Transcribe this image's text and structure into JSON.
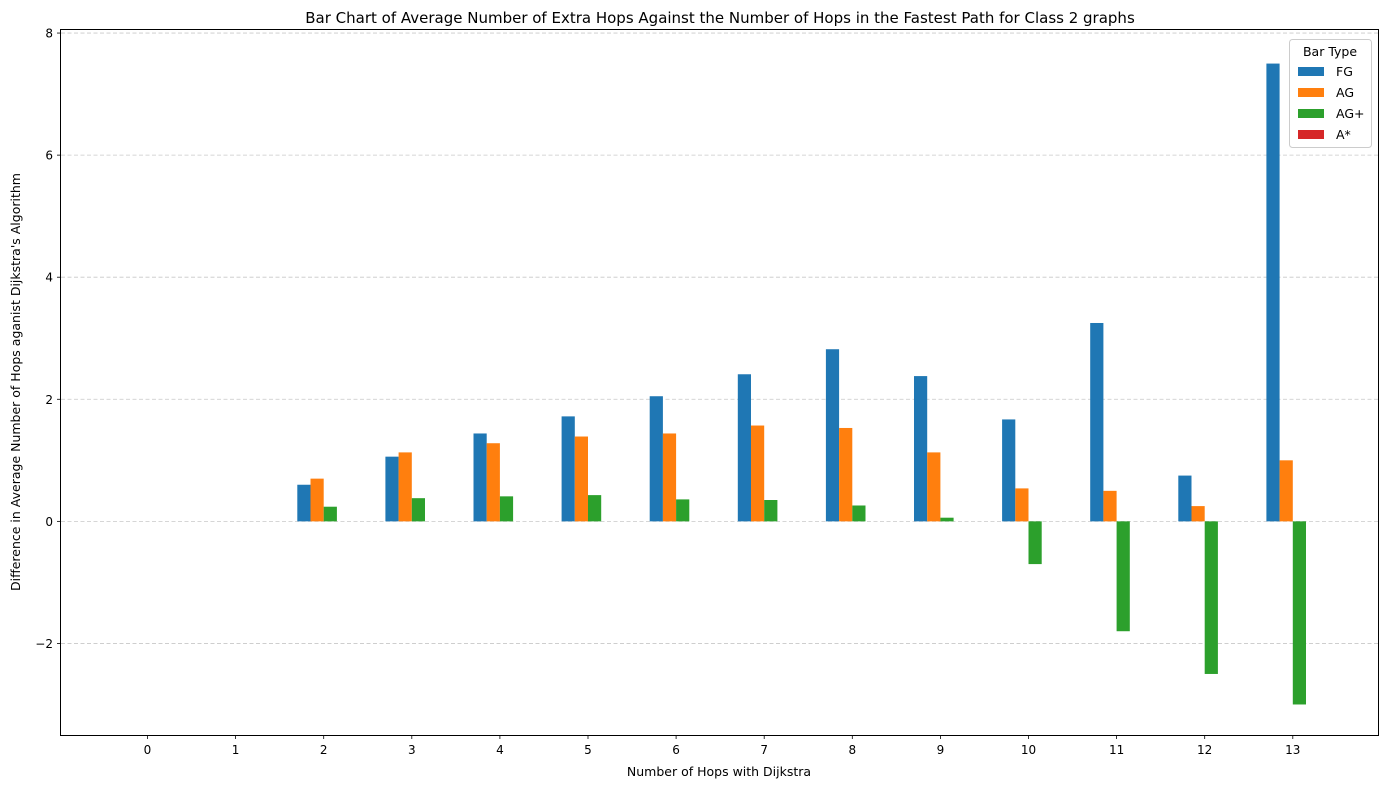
{
  "chart_data": {
    "type": "bar",
    "title": "Bar Chart of Average Number of Extra Hops Against the Number of Hops in the Fastest Path for Class 2 graphs",
    "xlabel": "Number of Hops with Dijkstra",
    "ylabel": "Difference in Average Number of Hops aganist Dijkstra's Algorithm",
    "categories": [
      "0",
      "1",
      "2",
      "3",
      "4",
      "5",
      "6",
      "7",
      "8",
      "9",
      "10",
      "11",
      "12",
      "13"
    ],
    "ylim": [
      -3.5,
      8.05
    ],
    "yticks": [
      -2,
      0,
      2,
      4,
      6,
      8
    ],
    "ytick_labels": [
      "−2",
      "0",
      "2",
      "4",
      "6",
      "8"
    ],
    "grid": "y-dashed",
    "legend_title": "Bar Type",
    "legend_position": "top-right",
    "series": [
      {
        "name": "FG",
        "color": "#1f77b4",
        "values": [
          0,
          0,
          0.6,
          1.06,
          1.44,
          1.72,
          2.05,
          2.41,
          2.82,
          2.38,
          1.67,
          3.25,
          0.75,
          7.5
        ]
      },
      {
        "name": "AG",
        "color": "#ff7f0e",
        "values": [
          0,
          0,
          0.7,
          1.13,
          1.28,
          1.39,
          1.44,
          1.57,
          1.53,
          1.13,
          0.54,
          0.5,
          0.25,
          1.0
        ]
      },
      {
        "name": "AG+",
        "color": "#2ca02c",
        "values": [
          0,
          0,
          0.24,
          0.38,
          0.41,
          0.43,
          0.36,
          0.35,
          0.26,
          0.06,
          -0.7,
          -1.8,
          -2.5,
          -3.0
        ]
      },
      {
        "name": "A*",
        "color": "#d62728",
        "values": [
          0,
          0,
          0,
          0,
          0,
          0,
          0,
          0,
          0,
          0,
          0,
          0,
          0,
          0
        ]
      }
    ]
  }
}
